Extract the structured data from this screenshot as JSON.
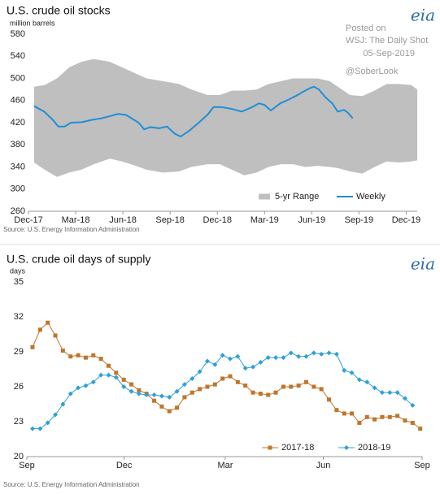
{
  "chart_data": [
    {
      "type": "line",
      "title": "U.S. crude oil stocks",
      "subtitle": "million barrels",
      "logo": "eia",
      "annotations": [
        "Posted on",
        "WSJ: The Daily Shot",
        "05-Sep-2019",
        "@SoberLook"
      ],
      "source": "Source: U.S. Energy Information Administration",
      "xlim": [
        0,
        24.7
      ],
      "xticks": [
        {
          "value": 0,
          "label": "Dec-17"
        },
        {
          "value": 3,
          "label": "Mar-18"
        },
        {
          "value": 6,
          "label": "Jun-18"
        },
        {
          "value": 9,
          "label": "Sep-18"
        },
        {
          "value": 12,
          "label": "Dec-18"
        },
        {
          "value": 15,
          "label": "Mar-19"
        },
        {
          "value": 18,
          "label": "Jun-19"
        },
        {
          "value": 21,
          "label": "Sep-19"
        },
        {
          "value": 24,
          "label": "Dec-19"
        }
      ],
      "ylim": [
        260,
        580
      ],
      "yticks": [
        260,
        300,
        340,
        380,
        420,
        460,
        500,
        540,
        580
      ],
      "grid": false,
      "legend": "lower right",
      "series": [
        {
          "name": "5-yr Range",
          "kind": "range",
          "color": "#bfbfbf",
          "x": [
            0.36,
            1.03,
            1.81,
            2.59,
            3.36,
            4.14,
            5.17,
            5.95,
            6.73,
            7.5,
            8.54,
            9.57,
            10.35,
            11.38,
            12.16,
            12.93,
            13.71,
            14.49,
            15.26,
            16.04,
            16.81,
            17.59,
            18.37,
            19.14,
            19.66,
            20.43,
            21.21,
            21.99,
            22.76,
            23.54,
            24.31,
            24.7
          ],
          "high": [
            485,
            488,
            500,
            520,
            530,
            535,
            530,
            520,
            510,
            500,
            495,
            490,
            480,
            470,
            470,
            478,
            478,
            480,
            490,
            495,
            500,
            500,
            500,
            495,
            485,
            470,
            468,
            478,
            490,
            490,
            488,
            480
          ],
          "low": [
            348,
            335,
            322,
            330,
            335,
            345,
            355,
            350,
            343,
            335,
            330,
            332,
            340,
            345,
            345,
            335,
            325,
            330,
            340,
            345,
            345,
            340,
            342,
            340,
            338,
            332,
            328,
            340,
            350,
            348,
            350,
            352
          ]
        },
        {
          "name": "Weekly",
          "kind": "line",
          "color": "#1f8fd6",
          "x": [
            0.36,
            1.0,
            1.55,
            1.9,
            2.3,
            2.7,
            3.4,
            4.0,
            4.65,
            5.2,
            5.7,
            6.2,
            7.0,
            7.35,
            7.75,
            8.3,
            8.8,
            9.3,
            9.67,
            10.2,
            10.9,
            11.4,
            11.75,
            12.3,
            12.9,
            13.55,
            14.2,
            14.65,
            15.0,
            15.4,
            16.0,
            16.55,
            17.1,
            17.4,
            17.85,
            18.15,
            18.45,
            18.9,
            19.3,
            19.65,
            20.05,
            20.3,
            20.6
          ],
          "values": [
            450,
            440,
            425,
            413,
            413,
            420,
            421,
            425,
            428,
            432,
            436,
            434,
            420,
            408,
            412,
            410,
            413,
            400,
            395,
            405,
            422,
            435,
            448,
            448,
            445,
            440,
            448,
            455,
            452,
            442,
            455,
            462,
            470,
            475,
            482,
            485,
            480,
            465,
            455,
            440,
            443,
            438,
            428
          ]
        }
      ]
    },
    {
      "type": "line",
      "title": "U.S. crude oil days of supply",
      "subtitle": "days",
      "logo": "eia",
      "source": "Source: U.S. Energy Information Administration",
      "xlim": [
        0,
        52
      ],
      "xticks": [
        {
          "value": 0,
          "label": "Sep"
        },
        {
          "value": 12.8,
          "label": "Dec"
        },
        {
          "value": 26.1,
          "label": "Mar"
        },
        {
          "value": 39,
          "label": "Jun"
        },
        {
          "value": 52,
          "label": "Sep"
        }
      ],
      "ylim": [
        20,
        35
      ],
      "yticks": [
        20,
        23,
        26,
        29,
        32,
        35
      ],
      "grid": false,
      "legend": "lower right",
      "x": [
        0.75,
        1.75,
        2.75,
        3.75,
        4.75,
        5.75,
        6.75,
        7.75,
        8.75,
        9.75,
        10.75,
        11.75,
        12.75,
        13.75,
        14.75,
        15.75,
        16.75,
        17.75,
        18.75,
        19.75,
        20.75,
        21.75,
        22.75,
        23.75,
        24.75,
        25.75,
        26.75,
        27.75,
        28.75,
        29.75,
        30.75,
        31.75,
        32.75,
        33.75,
        34.75,
        35.75,
        36.75,
        37.75,
        38.75,
        39.75,
        40.75,
        41.75,
        42.75,
        43.75,
        44.75,
        45.75,
        46.75,
        47.75,
        48.75,
        49.75,
        50.75,
        51.75
      ],
      "series": [
        {
          "name": "2017-18",
          "marker": "square",
          "color": "#c0752a",
          "values": [
            29.4,
            30.9,
            31.5,
            30.4,
            29.1,
            28.6,
            28.7,
            28.5,
            28.7,
            28.4,
            27.8,
            27.2,
            26.6,
            26.2,
            25.7,
            25.4,
            24.8,
            24.3,
            23.9,
            24.2,
            25.1,
            25.5,
            25.8,
            26.0,
            26.2,
            26.7,
            26.9,
            26.4,
            26.1,
            25.5,
            25.4,
            25.3,
            25.5,
            26.0,
            26.0,
            26.1,
            26.4,
            26.0,
            25.8,
            24.9,
            24.0,
            23.7,
            23.7,
            22.9,
            23.4,
            23.2,
            23.4,
            23.4,
            23.5,
            23.1,
            22.9,
            22.4
          ]
        },
        {
          "name": "2018-19",
          "marker": "diamond",
          "color": "#2ea0d8",
          "values": [
            22.4,
            22.4,
            22.9,
            23.6,
            24.5,
            25.4,
            25.9,
            26.1,
            26.4,
            27.0,
            27.0,
            26.8,
            26.0,
            25.6,
            25.4,
            25.3,
            25.3,
            25.2,
            25.1,
            25.6,
            26.2,
            26.7,
            27.3,
            28.2,
            27.9,
            28.7,
            28.4,
            28.6,
            27.6,
            27.7,
            28.1,
            28.5,
            28.5,
            28.5,
            28.9,
            28.6,
            28.6,
            28.9,
            28.8,
            28.9,
            28.8,
            27.4,
            27.2,
            26.6,
            26.4,
            25.9,
            25.5,
            25.5,
            25.5,
            25.0,
            24.4,
            null
          ]
        }
      ]
    }
  ]
}
